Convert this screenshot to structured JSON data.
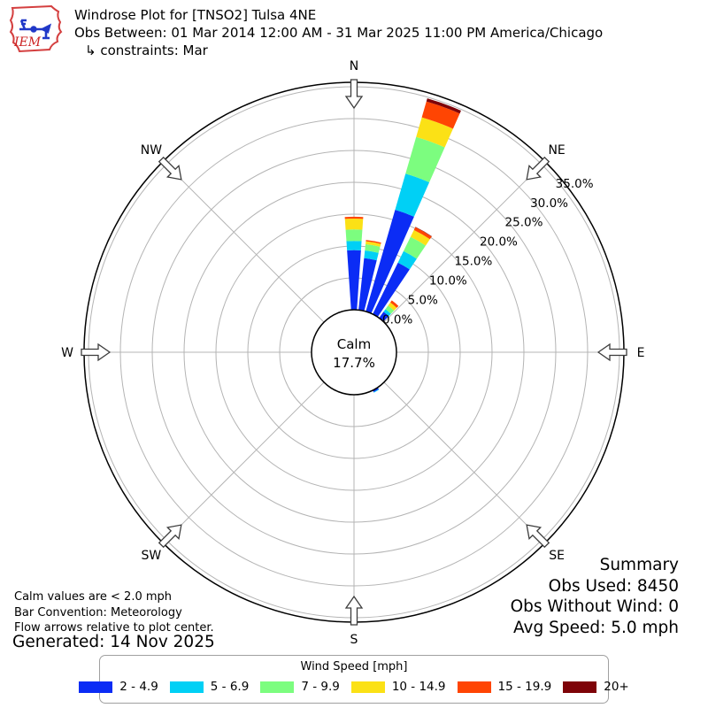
{
  "header": {
    "title": "Windrose Plot for [TNSO2] Tulsa 4NE",
    "subtitle": "Obs Between: 01 Mar 2014 12:00 AM - 31 Mar 2025 11:00 PM America/Chicago",
    "constraints": "↳ constraints: Mar",
    "logo_text": "IEM"
  },
  "chart_data": {
    "type": "windrose",
    "units": "mph",
    "calm_label": [
      "Calm",
      "17.7%"
    ],
    "ring_labels": [
      "0.0%",
      "5.0%",
      "10.0%",
      "15.0%",
      "20.0%",
      "25.0%",
      "30.0%",
      "35.0%"
    ],
    "ring_percents": [
      0,
      5,
      10,
      15,
      20,
      25,
      30,
      35
    ],
    "compass_labels": [
      "N",
      "NE",
      "E",
      "SE",
      "S",
      "SW",
      "W",
      "NW"
    ],
    "speed_bins": [
      {
        "label": "2 - 4.9",
        "color": "#0b2cf5"
      },
      {
        "label": "5 - 6.9",
        "color": "#00d0f5"
      },
      {
        "label": "7 - 9.9",
        "color": "#7cfd7f"
      },
      {
        "label": "10 - 14.9",
        "color": "#fbe116"
      },
      {
        "label": "15 - 19.9",
        "color": "#ff4503"
      },
      {
        "label": "20+",
        "color": "#7e0308"
      }
    ],
    "bars": [
      {
        "direction_deg": 0,
        "values_pct": [
          9.35,
          1.45,
          1.8,
          1.7,
          0.3,
          0
        ]
      },
      {
        "direction_deg": 10,
        "values_pct": [
          8.2,
          1.2,
          1.0,
          0.45,
          0.2,
          0
        ]
      },
      {
        "direction_deg": 20,
        "values_pct": [
          16.6,
          5.9,
          6.0,
          3.2,
          2.6,
          0.5
        ]
      },
      {
        "direction_deg": 30,
        "values_pct": [
          9.0,
          2.0,
          2.5,
          1.2,
          0.5,
          0.05
        ]
      },
      {
        "direction_deg": 40,
        "values_pct": [
          1.2,
          0.5,
          0.7,
          0.6,
          0.4,
          0
        ]
      },
      {
        "direction_deg": 150,
        "values_pct": [
          0.3,
          0.1,
          0,
          0,
          0,
          0
        ]
      }
    ],
    "bar_width_deg": 7.8,
    "radial_axis": {
      "min_pct": 0,
      "label_max_pct": 35,
      "ring_step_pct": 5
    },
    "grid": true,
    "legend_position": "bottom"
  },
  "legend": {
    "title": "Wind Speed [mph]"
  },
  "summary": {
    "title": "Summary",
    "obs_used": "Obs Used: 8450",
    "obs_without_wind": "Obs Without Wind: 0",
    "avg_speed": "Avg Speed: 5.0 mph"
  },
  "footnotes": {
    "calm": "Calm values are < 2.0 mph",
    "convention": "Bar Convention: Meteorology",
    "arrows": "Flow arrows relative to plot center.",
    "generated": "Generated: 14 Nov 2025"
  }
}
